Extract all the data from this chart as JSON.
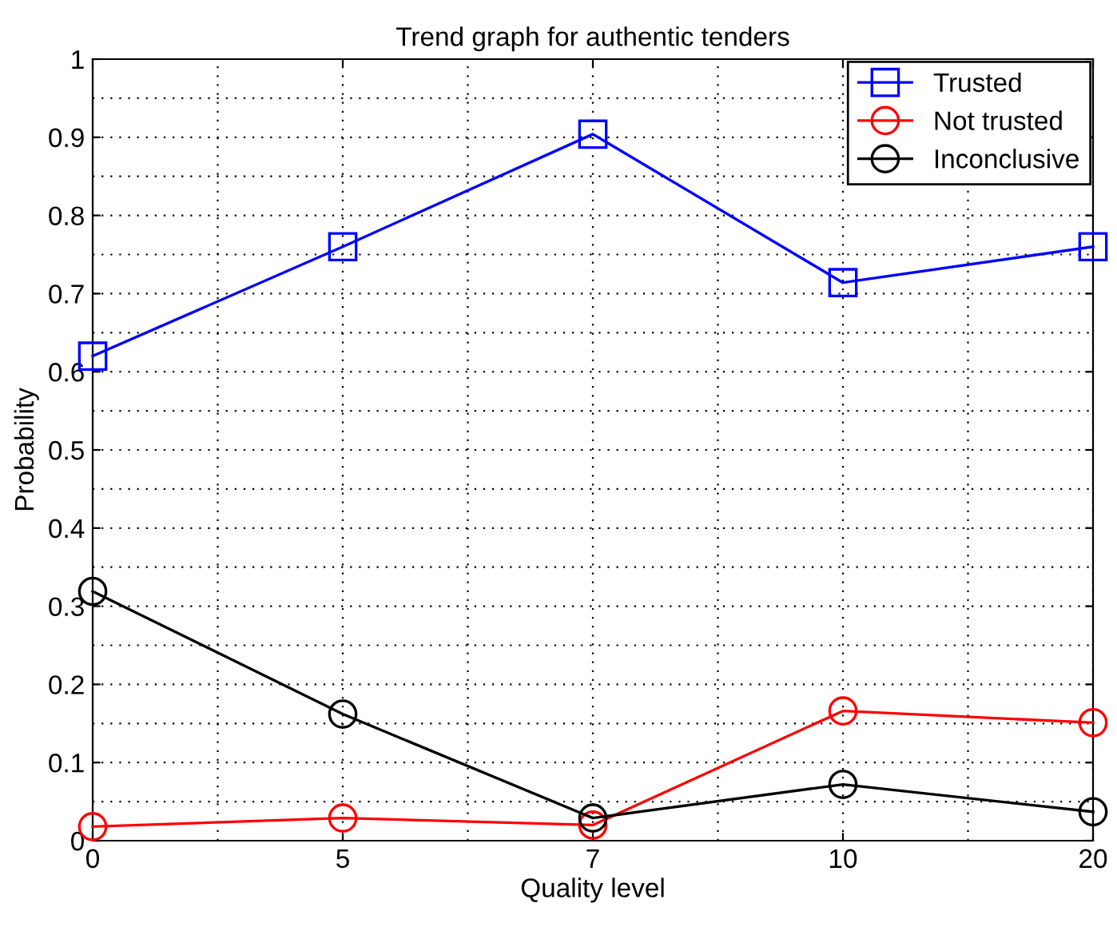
{
  "chart_data": {
    "type": "line",
    "title": "Trend graph for authentic tenders",
    "xlabel": "Quality level",
    "ylabel": "Probability",
    "categories": [
      "0",
      "5",
      "7",
      "10",
      "20"
    ],
    "series": [
      {
        "name": "Trusted",
        "color": "#0000ff",
        "marker": "square",
        "values": [
          0.62,
          0.76,
          0.904,
          0.714,
          0.76
        ]
      },
      {
        "name": "Not trusted",
        "color": "#ff0000",
        "marker": "circle",
        "values": [
          0.018,
          0.029,
          0.02,
          0.166,
          0.151
        ]
      },
      {
        "name": "Inconclusive",
        "color": "#000000",
        "marker": "circle",
        "values": [
          0.319,
          0.162,
          0.029,
          0.072,
          0.037
        ]
      }
    ],
    "ylim": [
      0,
      1
    ],
    "yticks": [
      0,
      0.1,
      0.2,
      0.3,
      0.4,
      0.5,
      0.6,
      0.7,
      0.8,
      0.9,
      1
    ],
    "grid": true,
    "legend": "top right",
    "line_style": "solid"
  }
}
